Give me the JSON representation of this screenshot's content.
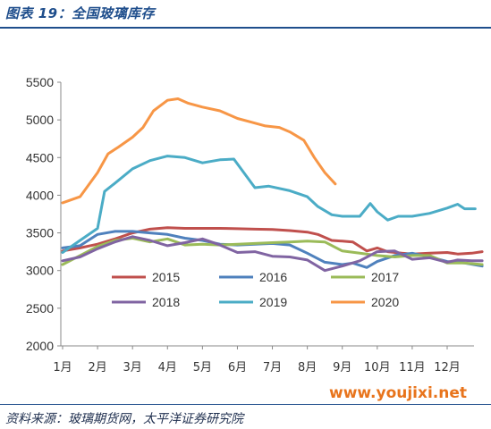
{
  "header": {
    "title": "图表 19：全国玻璃库存"
  },
  "footer": {
    "source": "资料来源：玻璃期货网，太平洋证券研究院"
  },
  "watermark": {
    "text": "www.youjixi.net"
  },
  "chart_data": {
    "type": "line",
    "title": "",
    "xlabel": "",
    "ylabel": "",
    "ylim": [
      2000,
      5500
    ],
    "yticks": [
      2000,
      2500,
      3000,
      3500,
      4000,
      4500,
      5000,
      5500
    ],
    "xlim": [
      1,
      13
    ],
    "xticks": [
      {
        "label": "1月",
        "pos": 1
      },
      {
        "label": "2月",
        "pos": 2
      },
      {
        "label": "3月",
        "pos": 3
      },
      {
        "label": "4月",
        "pos": 4
      },
      {
        "label": "5月",
        "pos": 5
      },
      {
        "label": "6月",
        "pos": 6
      },
      {
        "label": "7月",
        "pos": 7
      },
      {
        "label": "8月",
        "pos": 8
      },
      {
        "label": "9月",
        "pos": 9
      },
      {
        "label": "10月",
        "pos": 10
      },
      {
        "label": "11月",
        "pos": 11
      },
      {
        "label": "12月",
        "pos": 12
      }
    ],
    "grid": false,
    "legend_position": "inside-bottom",
    "series": [
      {
        "name": "2015",
        "color": "#c0504d",
        "points": [
          [
            1.0,
            3260
          ],
          [
            1.5,
            3300
          ],
          [
            2.0,
            3350
          ],
          [
            2.5,
            3420
          ],
          [
            3.0,
            3500
          ],
          [
            3.5,
            3550
          ],
          [
            4.0,
            3570
          ],
          [
            4.5,
            3560
          ],
          [
            5.0,
            3560
          ],
          [
            5.5,
            3560
          ],
          [
            6.0,
            3555
          ],
          [
            6.5,
            3550
          ],
          [
            7.0,
            3545
          ],
          [
            7.5,
            3530
          ],
          [
            8.0,
            3510
          ],
          [
            8.3,
            3480
          ],
          [
            8.7,
            3400
          ],
          [
            9.0,
            3390
          ],
          [
            9.3,
            3380
          ],
          [
            9.7,
            3260
          ],
          [
            10.0,
            3300
          ],
          [
            10.3,
            3250
          ],
          [
            10.7,
            3230
          ],
          [
            11.0,
            3220
          ],
          [
            11.5,
            3230
          ],
          [
            12.0,
            3240
          ],
          [
            12.3,
            3220
          ],
          [
            12.7,
            3230
          ],
          [
            13.0,
            3250
          ]
        ]
      },
      {
        "name": "2016",
        "color": "#4f81bd",
        "points": [
          [
            1.0,
            3300
          ],
          [
            1.5,
            3330
          ],
          [
            2.0,
            3480
          ],
          [
            2.5,
            3520
          ],
          [
            3.0,
            3520
          ],
          [
            3.5,
            3500
          ],
          [
            4.0,
            3480
          ],
          [
            4.5,
            3430
          ],
          [
            5.0,
            3400
          ],
          [
            5.5,
            3350
          ],
          [
            6.0,
            3340
          ],
          [
            6.5,
            3350
          ],
          [
            7.0,
            3360
          ],
          [
            7.5,
            3340
          ],
          [
            8.0,
            3230
          ],
          [
            8.5,
            3110
          ],
          [
            9.0,
            3080
          ],
          [
            9.3,
            3100
          ],
          [
            9.7,
            3040
          ],
          [
            10.0,
            3120
          ],
          [
            10.5,
            3200
          ],
          [
            11.0,
            3230
          ],
          [
            11.5,
            3180
          ],
          [
            12.0,
            3120
          ],
          [
            12.5,
            3100
          ],
          [
            13.0,
            3060
          ]
        ]
      },
      {
        "name": "2017",
        "color": "#9bbb59",
        "points": [
          [
            1.0,
            3080
          ],
          [
            1.5,
            3200
          ],
          [
            2.0,
            3320
          ],
          [
            2.5,
            3400
          ],
          [
            3.0,
            3430
          ],
          [
            3.5,
            3380
          ],
          [
            4.0,
            3420
          ],
          [
            4.5,
            3340
          ],
          [
            5.0,
            3350
          ],
          [
            5.5,
            3340
          ],
          [
            6.0,
            3350
          ],
          [
            6.5,
            3360
          ],
          [
            7.0,
            3370
          ],
          [
            7.5,
            3380
          ],
          [
            8.0,
            3390
          ],
          [
            8.5,
            3380
          ],
          [
            9.0,
            3260
          ],
          [
            9.5,
            3230
          ],
          [
            10.0,
            3200
          ],
          [
            10.5,
            3180
          ],
          [
            11.0,
            3200
          ],
          [
            11.5,
            3200
          ],
          [
            12.0,
            3100
          ],
          [
            12.5,
            3100
          ],
          [
            13.0,
            3080
          ]
        ]
      },
      {
        "name": "2018",
        "color": "#8064a2",
        "points": [
          [
            1.0,
            3130
          ],
          [
            1.5,
            3180
          ],
          [
            2.0,
            3290
          ],
          [
            2.5,
            3380
          ],
          [
            3.0,
            3450
          ],
          [
            3.5,
            3400
          ],
          [
            4.0,
            3330
          ],
          [
            4.5,
            3370
          ],
          [
            5.0,
            3420
          ],
          [
            5.5,
            3340
          ],
          [
            6.0,
            3240
          ],
          [
            6.5,
            3250
          ],
          [
            7.0,
            3190
          ],
          [
            7.5,
            3180
          ],
          [
            8.0,
            3140
          ],
          [
            8.5,
            3000
          ],
          [
            9.0,
            3060
          ],
          [
            9.5,
            3130
          ],
          [
            10.0,
            3250
          ],
          [
            10.5,
            3260
          ],
          [
            11.0,
            3150
          ],
          [
            11.5,
            3170
          ],
          [
            12.0,
            3110
          ],
          [
            12.3,
            3140
          ],
          [
            12.7,
            3130
          ],
          [
            13.0,
            3130
          ]
        ]
      },
      {
        "name": "2019",
        "color": "#4bacc6",
        "points": [
          [
            1.0,
            3240
          ],
          [
            1.5,
            3400
          ],
          [
            2.0,
            3560
          ],
          [
            2.2,
            4050
          ],
          [
            2.5,
            4160
          ],
          [
            3.0,
            4350
          ],
          [
            3.5,
            4460
          ],
          [
            4.0,
            4520
          ],
          [
            4.5,
            4500
          ],
          [
            5.0,
            4430
          ],
          [
            5.5,
            4470
          ],
          [
            5.9,
            4480
          ],
          [
            6.5,
            4100
          ],
          [
            6.9,
            4120
          ],
          [
            7.5,
            4060
          ],
          [
            8.0,
            3980
          ],
          [
            8.3,
            3850
          ],
          [
            8.7,
            3740
          ],
          [
            9.0,
            3720
          ],
          [
            9.5,
            3720
          ],
          [
            9.8,
            3890
          ],
          [
            10.0,
            3780
          ],
          [
            10.3,
            3670
          ],
          [
            10.6,
            3720
          ],
          [
            11.0,
            3720
          ],
          [
            11.5,
            3760
          ],
          [
            12.0,
            3830
          ],
          [
            12.3,
            3880
          ],
          [
            12.5,
            3820
          ],
          [
            12.8,
            3820
          ]
        ]
      },
      {
        "name": "2020",
        "color": "#f79646",
        "points": [
          [
            1.0,
            3900
          ],
          [
            1.5,
            3980
          ],
          [
            2.0,
            4300
          ],
          [
            2.3,
            4550
          ],
          [
            2.6,
            4640
          ],
          [
            3.0,
            4770
          ],
          [
            3.3,
            4900
          ],
          [
            3.6,
            5120
          ],
          [
            4.0,
            5260
          ],
          [
            4.3,
            5280
          ],
          [
            4.6,
            5220
          ],
          [
            5.0,
            5170
          ],
          [
            5.5,
            5120
          ],
          [
            6.0,
            5020
          ],
          [
            6.4,
            4970
          ],
          [
            6.8,
            4920
          ],
          [
            7.2,
            4900
          ],
          [
            7.5,
            4840
          ],
          [
            7.9,
            4730
          ],
          [
            8.2,
            4500
          ],
          [
            8.5,
            4300
          ],
          [
            8.8,
            4150
          ]
        ]
      }
    ]
  }
}
